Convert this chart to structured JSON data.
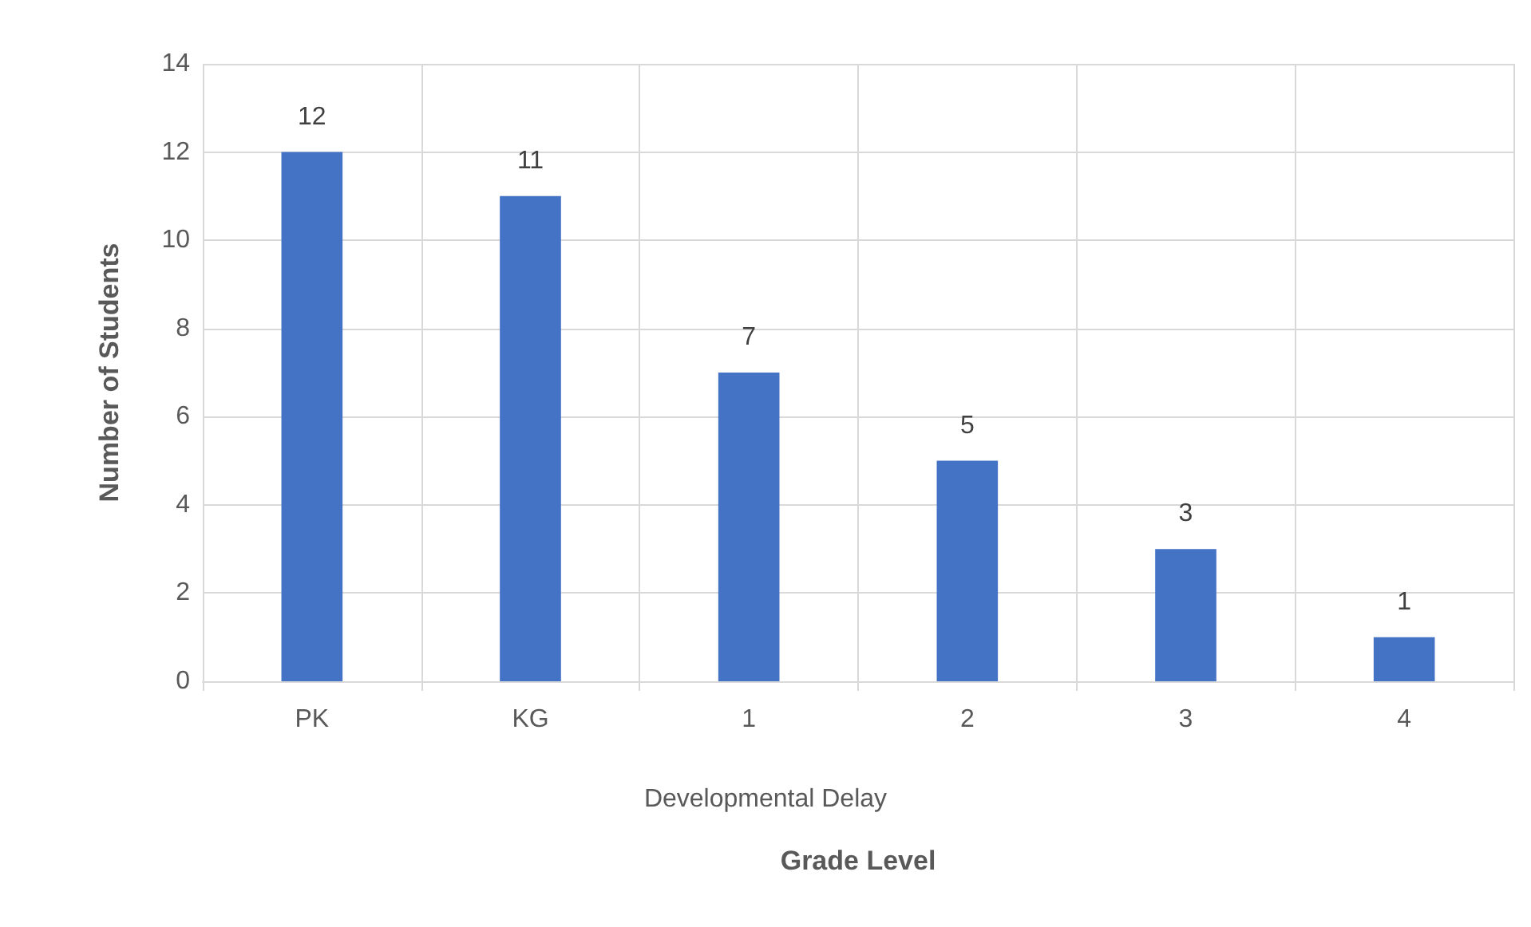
{
  "chart_data": {
    "type": "bar",
    "xlabel": "Grade Level",
    "ylabel": "Number of Students",
    "categories": [
      "PK",
      "KG",
      "1",
      "2",
      "3",
      "4"
    ],
    "values": [
      12,
      11,
      7,
      5,
      3,
      1
    ],
    "color": "#4472c4",
    "ylim": [
      0,
      14
    ],
    "yticks": [
      0,
      2,
      4,
      6,
      8,
      10,
      12,
      14
    ],
    "grid": true,
    "data_labels": true,
    "annotations": [
      "Developmental Delay"
    ]
  }
}
